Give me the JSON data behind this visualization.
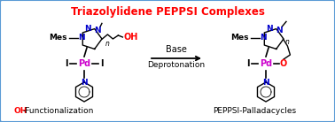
{
  "title": "Triazolylidene PEPPSI Complexes",
  "title_color": "#FF0000",
  "title_fontsize": 8.5,
  "bg_color": "#FFFFFF",
  "border_color": "#5B9BD5",
  "arrow_text_top": "Base",
  "arrow_text_bottom": "Deprotonation",
  "label_left_oh": "OH",
  "label_left_text": "-Functionalization",
  "label_right": "PEPPSI-Palladacycles",
  "label_left_oh_color": "#FF0000",
  "label_left_text_color": "#000000",
  "label_right_color": "#000000",
  "mes_color": "#000000",
  "n_color": "#0000CC",
  "pd_color": "#CC00CC",
  "oh_color": "#FF0000",
  "o_color": "#FF0000",
  "i_color": "#000000",
  "bond_color": "#000000"
}
